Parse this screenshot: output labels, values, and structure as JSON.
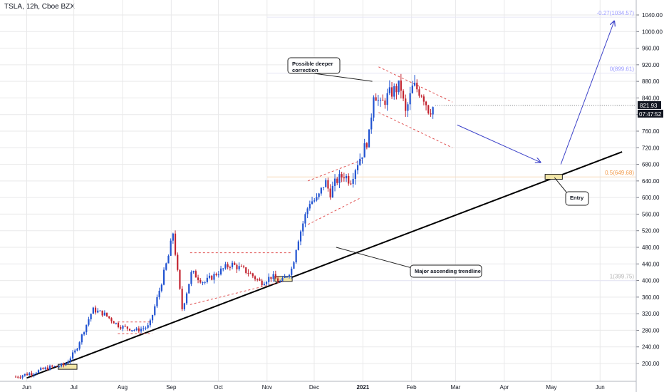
{
  "header": {
    "symbol_line": "TSLA, 12h, Cboe BZX"
  },
  "colors": {
    "bull": "#2153d1",
    "bear": "#c2232f",
    "fib": "#9c9cff",
    "fib_mid": "#f29b4b",
    "channel": "#e05252",
    "arrow": "#3d43c9",
    "trendline": "#000000",
    "grid": "#e9e9ea"
  },
  "chart_data": {
    "type": "candlestick",
    "title": "TSLA, 12h, Cboe BZX",
    "x_ticks": [
      "Jun",
      "Jul",
      "Aug",
      "Sep",
      "Oct",
      "Nov",
      "Dec",
      "2021",
      "Feb",
      "Mar",
      "Apr",
      "May",
      "Jun"
    ],
    "y_ticks": [
      200,
      240,
      280,
      320,
      360,
      400,
      440,
      480,
      520,
      560,
      600,
      640,
      680,
      720,
      760,
      800,
      840,
      880,
      920,
      960,
      1000,
      1040
    ],
    "ylim": [
      170,
      1055
    ],
    "last_price": "821.93",
    "countdown": "07:47:52",
    "fib_levels": [
      {
        "label": "-0.27(1034.57)",
        "value": 1034.57
      },
      {
        "label": "0(899.61)",
        "value": 899.61
      },
      {
        "label": "0.5(649.68)",
        "value": 649.68
      },
      {
        "label": "1(399.75)",
        "value": 399.75
      }
    ],
    "annotations": {
      "deeper_correction": "Possible deeper\ncorrection",
      "trendline": "Major ascending trendline",
      "entry": "Entry"
    },
    "price_path": [
      [
        "2020-05-25",
        168
      ],
      [
        "2020-06-05",
        178
      ],
      [
        "2020-06-15",
        190
      ],
      [
        "2020-06-25",
        196
      ],
      [
        "2020-07-02",
        230
      ],
      [
        "2020-07-08",
        285
      ],
      [
        "2020-07-13",
        330
      ],
      [
        "2020-07-20",
        320
      ],
      [
        "2020-07-30",
        290
      ],
      [
        "2020-08-10",
        280
      ],
      [
        "2020-08-18",
        290
      ],
      [
        "2020-08-24",
        370
      ],
      [
        "2020-08-31",
        470
      ],
      [
        "2020-09-02",
        520
      ],
      [
        "2020-09-05",
        420
      ],
      [
        "2020-09-08",
        330
      ],
      [
        "2020-09-14",
        420
      ],
      [
        "2020-09-22",
        395
      ],
      [
        "2020-10-01",
        420
      ],
      [
        "2020-10-09",
        440
      ],
      [
        "2020-10-20",
        420
      ],
      [
        "2020-10-28",
        395
      ],
      [
        "2020-11-04",
        410
      ],
      [
        "2020-11-10",
        395
      ],
      [
        "2020-11-17",
        430
      ],
      [
        "2020-11-20",
        490
      ],
      [
        "2020-11-24",
        540
      ],
      [
        "2020-11-28",
        590
      ],
      [
        "2020-12-03",
        595
      ],
      [
        "2020-12-08",
        640
      ],
      [
        "2020-12-11",
        610
      ],
      [
        "2020-12-15",
        640
      ],
      [
        "2020-12-20",
        655
      ],
      [
        "2020-12-24",
        640
      ],
      [
        "2020-12-28",
        680
      ],
      [
        "2021-01-01",
        710
      ],
      [
        "2021-01-05",
        750
      ],
      [
        "2021-01-08",
        860
      ],
      [
        "2021-01-12",
        820
      ],
      [
        "2021-01-18",
        850
      ],
      [
        "2021-01-25",
        870
      ],
      [
        "2021-01-28",
        800
      ],
      [
        "2021-02-02",
        870
      ],
      [
        "2021-02-08",
        850
      ],
      [
        "2021-02-12",
        810
      ],
      [
        "2021-02-16",
        821.93
      ]
    ],
    "drawings": {
      "trendline": [
        [
          "2020-06-01",
          165
        ],
        [
          "2021-06-15",
          710
        ]
      ],
      "channel_upper": [
        [
          "2021-01-11",
          915
        ],
        [
          "2021-02-27",
          830
        ]
      ],
      "channel_lower": [
        [
          "2021-01-11",
          805
        ],
        [
          "2021-02-27",
          720
        ]
      ],
      "aug_box": [
        [
          "2020-07-29",
          300
        ],
        [
          "2020-08-20",
          272
        ]
      ],
      "sym_triangle_top": [
        [
          "2020-09-13",
          467
        ],
        [
          "2020-11-17",
          467
        ]
      ],
      "sym_triangle_bot": [
        [
          "2020-09-13",
          342
        ],
        [
          "2020-11-17",
          403
        ]
      ],
      "rising_upper": [
        [
          "2020-11-27",
          640
        ],
        [
          "2020-12-31",
          690
        ]
      ],
      "rising_lower": [
        [
          "2020-11-27",
          535
        ],
        [
          "2020-12-31",
          600
        ]
      ],
      "arrow_down": [
        [
          "2021-03-02",
          775
        ],
        [
          "2021-04-24",
          685
        ]
      ],
      "arrow_up": [
        [
          "2021-05-07",
          680
        ],
        [
          "2021-06-10",
          1025
        ]
      ],
      "box_jul": [
        [
          "2020-06-21",
          198
        ],
        [
          "2020-07-03",
          186
        ]
      ],
      "box_nov": [
        [
          "2020-11-06",
          410
        ],
        [
          "2020-11-17",
          398
        ]
      ],
      "box_entry": [
        [
          "2021-04-27",
          656
        ],
        [
          "2021-05-08",
          644
        ]
      ]
    }
  }
}
